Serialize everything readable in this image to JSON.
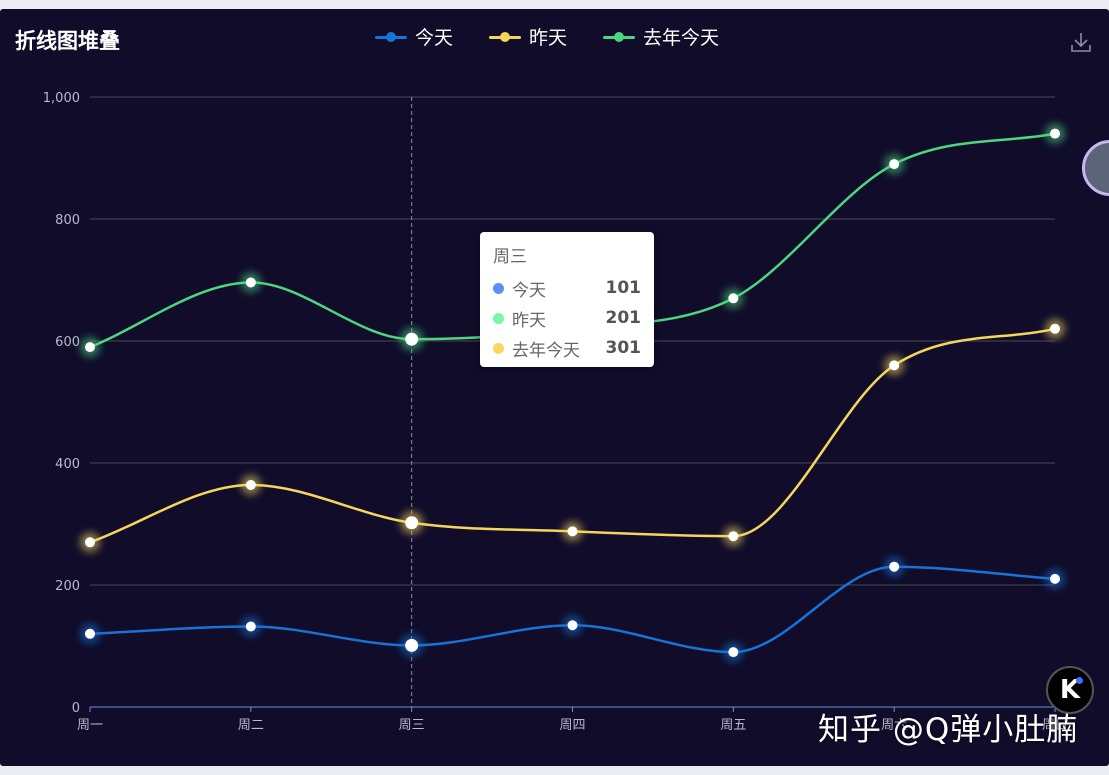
{
  "title": "折线图堆叠",
  "legend": [
    {
      "name": "今天",
      "color": "#1773d6"
    },
    {
      "name": "昨天",
      "color": "#f5d65a"
    },
    {
      "name": "去年今天",
      "color": "#4dd67e"
    }
  ],
  "tooltip": {
    "title": "周三",
    "rows": [
      {
        "name": "今天",
        "value": "101",
        "color": "#5b8ff9"
      },
      {
        "name": "昨天",
        "value": "201",
        "color": "#7cf5a8"
      },
      {
        "name": "去年今天",
        "value": "301",
        "color": "#fcd75e"
      }
    ]
  },
  "watermark": "知乎 @Q弹小肚腩",
  "badge": "K",
  "colors": {
    "background": "#100c2a",
    "grid": "#484753",
    "axis": "#6e8fd8",
    "tick_label": "#b9b8ce",
    "pointer": "#8f8da8"
  },
  "icons": {
    "download": "download-icon",
    "side": "side-widget-icon"
  },
  "chart_data": {
    "type": "line",
    "smooth": true,
    "categories": [
      "周一",
      "周二",
      "周三",
      "周四",
      "周五",
      "周六",
      "周日"
    ],
    "y_ticks": [
      "0",
      "200",
      "400",
      "600",
      "800",
      "1,000"
    ],
    "ylim": [
      0,
      1000
    ],
    "grid": true,
    "legend_position": "top-center",
    "axis_pointer_category": "周三",
    "series": [
      {
        "name": "今天",
        "color": "#1773d6",
        "values": [
          120,
          132,
          101,
          134,
          90,
          230,
          210
        ]
      },
      {
        "name": "昨天",
        "color": "#f5d65a",
        "values": [
          270,
          364,
          302,
          288,
          280,
          560,
          620
        ]
      },
      {
        "name": "去年今天",
        "color": "#4dd67e",
        "values": [
          590,
          696,
          603,
          620,
          670,
          890,
          940
        ]
      }
    ]
  }
}
